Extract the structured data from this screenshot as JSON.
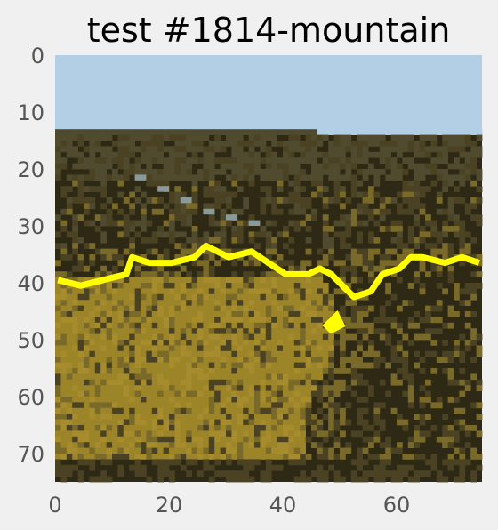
{
  "chart_data": {
    "type": "heatmap",
    "title": "test #1814-mountain",
    "xlabel": "",
    "ylabel": "",
    "grid": false,
    "image_size": [
      75,
      75
    ],
    "xlim": [
      0,
      74
    ],
    "ylim": [
      74,
      0
    ],
    "xticks": [
      0,
      20,
      40,
      60
    ],
    "yticks": [
      0,
      10,
      20,
      30,
      40,
      50,
      60,
      70
    ],
    "colors": {
      "sky": "#b3cfe6",
      "ridge": "#504a2e",
      "dark": "#2d2914",
      "mid": "#4a4222",
      "olive": "#7a6a2a",
      "gold": "#9c8428",
      "bright_gold": "#a68c2c",
      "stream": "#8a9a9a",
      "contour": "#ffff00"
    },
    "regions": [
      {
        "name": "sky",
        "y_range": [
          0,
          13
        ]
      },
      {
        "name": "distant-ridge",
        "y_range": [
          13,
          22
        ]
      },
      {
        "name": "dark-slope",
        "y_range": [
          22,
          34
        ]
      },
      {
        "name": "golden-hillside",
        "y_range": [
          38,
          74
        ],
        "x_range": [
          0,
          52
        ]
      },
      {
        "name": "shadowed-valley",
        "y_range": [
          38,
          74
        ],
        "x_range": [
          48,
          74
        ]
      }
    ],
    "stream_path": [
      [
        14,
        21
      ],
      [
        18,
        23
      ],
      [
        22,
        25
      ],
      [
        26,
        27
      ],
      [
        30,
        28
      ],
      [
        34,
        29
      ]
    ],
    "contour_line": [
      [
        0,
        39
      ],
      [
        4,
        40
      ],
      [
        8,
        39
      ],
      [
        12,
        38
      ],
      [
        13,
        35
      ],
      [
        16,
        36
      ],
      [
        20,
        36
      ],
      [
        24,
        35
      ],
      [
        26,
        33
      ],
      [
        30,
        35
      ],
      [
        34,
        34
      ],
      [
        37,
        36
      ],
      [
        40,
        38
      ],
      [
        44,
        38
      ],
      [
        46,
        37
      ],
      [
        48,
        38
      ],
      [
        50,
        40
      ],
      [
        52,
        42
      ],
      [
        55,
        41
      ],
      [
        57,
        38
      ],
      [
        60,
        37
      ],
      [
        62,
        35
      ],
      [
        64,
        35
      ],
      [
        68,
        36
      ],
      [
        71,
        35
      ],
      [
        74,
        36
      ]
    ],
    "contour_blob": [
      [
        47,
        47
      ],
      [
        48,
        48
      ],
      [
        50,
        47
      ],
      [
        49,
        45
      ]
    ]
  }
}
